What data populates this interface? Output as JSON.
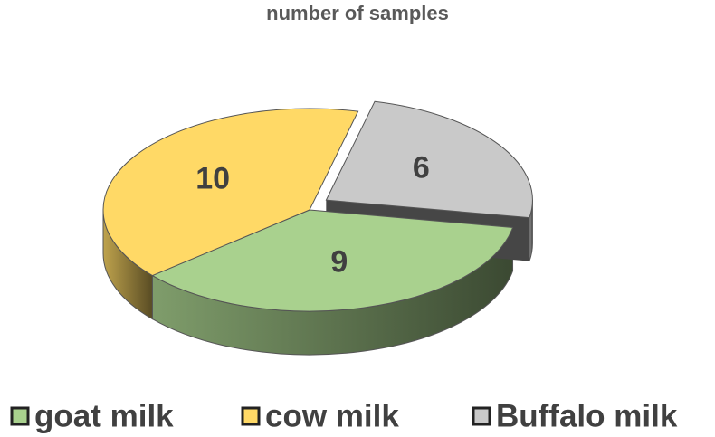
{
  "chart_data": {
    "type": "pie",
    "title": "number of samples",
    "categories": [
      "goat milk",
      "cow milk",
      "Buffalo milk"
    ],
    "values": [
      9,
      10,
      6
    ],
    "colors": [
      "#a9d18e",
      "#ffd966",
      "#c9c9c9"
    ],
    "legend": "bottom"
  }
}
